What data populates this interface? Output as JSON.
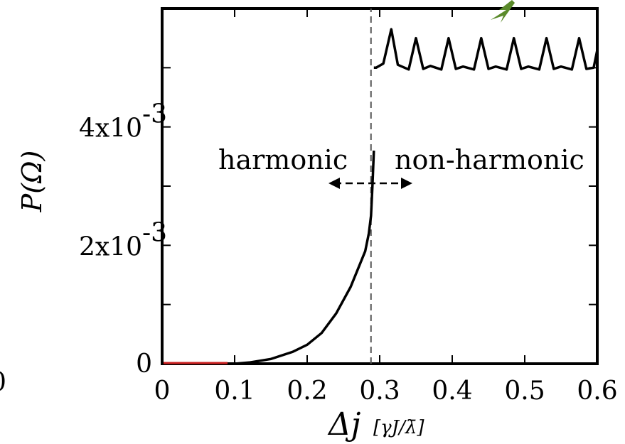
{
  "chart_data": {
    "type": "line",
    "title": "",
    "xlabel_main": "Δj",
    "xlabel_unit": "[γJ/λ̄]",
    "ylabel": "P(Ω)",
    "xlim": [
      0,
      0.6
    ],
    "ylim": [
      0,
      0.006
    ],
    "x_tick_labels": [
      "0",
      "0.1",
      "0.2",
      "0.3",
      "0.4",
      "0.5",
      "0.6"
    ],
    "y_tick_labels": [
      "0",
      "2x10",
      "4x10"
    ],
    "y_tick_exponents": [
      "",
      "-3",
      "-3"
    ],
    "grid": false,
    "transition_x": 0.288,
    "annotations": [
      "harmonic",
      "non-harmonic"
    ],
    "series": [
      {
        "x": [
          0,
          0.05,
          0.1,
          0.12,
          0.15,
          0.18,
          0.2,
          0.22,
          0.24,
          0.26,
          0.27,
          0.28,
          0.285,
          0.288,
          0.29,
          0.292
        ],
        "y": [
          0,
          0,
          0,
          2e-05,
          8e-05,
          0.0002,
          0.00032,
          0.00052,
          0.00085,
          0.0013,
          0.0016,
          0.0019,
          0.0022,
          0.0025,
          0.003,
          0.0036
        ]
      },
      {
        "x": [
          0.292,
          0.295,
          0.305,
          0.316,
          0.325,
          0.34,
          0.35,
          0.36,
          0.37,
          0.385,
          0.395,
          0.405,
          0.415,
          0.43,
          0.44,
          0.45,
          0.46,
          0.475,
          0.485,
          0.495,
          0.505,
          0.52,
          0.53,
          0.54,
          0.55,
          0.565,
          0.575,
          0.585,
          0.595,
          0.6
        ],
        "y": [
          0.005,
          0.005,
          0.00507,
          0.00565,
          0.00505,
          0.00497,
          0.0055,
          0.00498,
          0.00503,
          0.00497,
          0.0055,
          0.00498,
          0.00502,
          0.00497,
          0.0055,
          0.00498,
          0.00502,
          0.00497,
          0.0055,
          0.00498,
          0.00502,
          0.00497,
          0.0055,
          0.00498,
          0.00502,
          0.00497,
          0.0055,
          0.00498,
          0.005,
          0.0053
        ]
      }
    ]
  }
}
